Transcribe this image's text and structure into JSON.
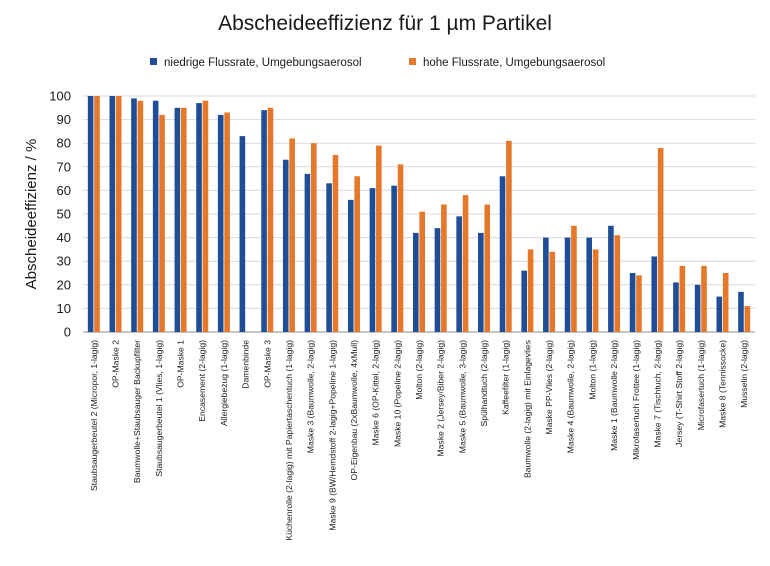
{
  "chart_data": {
    "type": "bar",
    "title": "Abscheideeffizienz für 1 µm Partikel",
    "ylabel": "Abscheideeffizienz / %",
    "xlabel": "",
    "ylim": [
      0,
      100
    ],
    "yticks": [
      0,
      10,
      20,
      30,
      40,
      50,
      60,
      70,
      80,
      90,
      100
    ],
    "grid": true,
    "legend_position": "top",
    "categories": [
      "Staubsaugerbeutel 2 (Micropor, 1-lagig)",
      "OP-Maske 2",
      "Baumwolle+Staubsauger Backupfilter",
      "Staubsaugerbeutel 1 (Vlies, 1-lagig)",
      "OP-Maske 1",
      "Encasement (2-lagig)",
      "Allergiebezug (1-lagig)",
      "Damenbinde",
      "OP-Maske 3",
      "Küchenrolle (2-lagig) mit Papiertaschentuch (1-lagig)",
      "Maske 3 (Baumwolle, 2-lagig)",
      "Maske 9 (BW/Hemdstoff 2-lagig+Popeline 1-lagig)",
      "OP-Eigenbau (2xBaumwolle, 4xMull)",
      "Maske 6 (OP-Kittel, 2-lagig)",
      "Maske 10 (Popeline 2-lagig)",
      "Molton (2-lagig)",
      "Maske 2 (Jersey/Biber 2-lagig)",
      "Maske 5 (Baumwolle, 3-lagig)",
      "Spülhandtuch (2-lagig)",
      "Kaffeefilter (1-lagig)",
      "Baumwolle (2-lagig) mit Einlagevlies",
      "Maske PP-Vlies (2-lagig)",
      "Maske 4 (Baumwolle, 2-lagig)",
      "Molton (1-lagig)",
      "Maske 1 (Baumwolle 2-lagig)",
      "Mikrofasertuch Frottee (1-lagig)",
      "Maske 7 (Tischtuch, 2-lagig)",
      "Jersey (T-Shirt Stoff 2-lagig)",
      "Microfasertuch (1-lagig)",
      "Maske 8 (Tennissocke)",
      "Musselin (2-lagig)"
    ],
    "series": [
      {
        "name": "niedrige Flussrate, Umgebungsaerosol",
        "color": "#1f4e96",
        "values": [
          100,
          100,
          99,
          98,
          95,
          97,
          92,
          83,
          94,
          73,
          67,
          63,
          56,
          61,
          62,
          42,
          44,
          49,
          42,
          66,
          26,
          40,
          40,
          40,
          45,
          25,
          32,
          21,
          20,
          15,
          17
        ]
      },
      {
        "name": "hohe Flussrate, Umgebungsaerosol",
        "color": "#e5782b",
        "values": [
          100,
          100,
          98,
          92,
          95,
          98,
          93,
          null,
          95,
          82,
          80,
          75,
          66,
          79,
          71,
          51,
          54,
          58,
          54,
          81,
          35,
          34,
          45,
          35,
          41,
          24,
          78,
          28,
          28,
          25,
          11
        ]
      }
    ]
  }
}
